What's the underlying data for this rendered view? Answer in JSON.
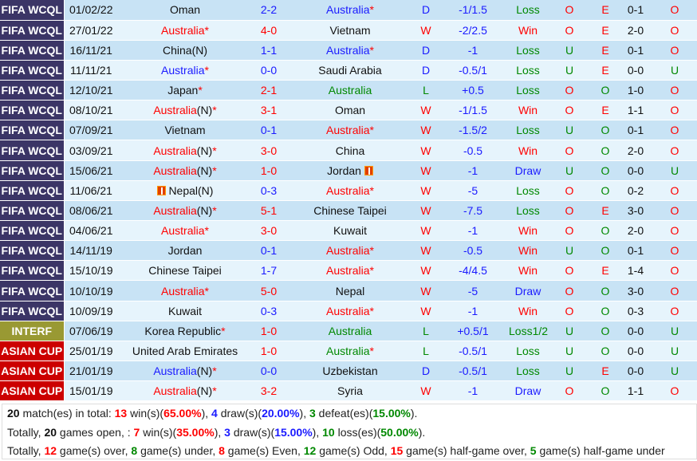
{
  "colors": {
    "FIFA WCQL": "#3b3566",
    "INTERF": "#999933",
    "ASIAN CUP": "#cc0000",
    "win": "#ff0000",
    "draw": "#1a1aff",
    "loss": "#008800"
  },
  "rows": [
    {
      "comp": "FIFA WCQL",
      "date": "01/02/22",
      "home": "Oman",
      "score": "2-2",
      "away": "Australia",
      "away_star": "*",
      "res": "D",
      "hcp": "-1/1.5",
      "out": "Loss",
      "ou": "O",
      "oe": "E",
      "ht": "0-1",
      "htou": "O"
    },
    {
      "comp": "FIFA WCQL",
      "date": "27/01/22",
      "home": "Australia",
      "home_star": "*",
      "score": "4-0",
      "away": "Vietnam",
      "res": "W",
      "hcp": "-2/2.5",
      "out": "Win",
      "ou": "O",
      "oe": "E",
      "ht": "2-0",
      "htou": "O"
    },
    {
      "comp": "FIFA WCQL",
      "date": "16/11/21",
      "home": "China(N)",
      "score": "1-1",
      "away": "Australia",
      "away_star": "*",
      "res": "D",
      "hcp": "-1",
      "out": "Loss",
      "ou": "U",
      "oe": "E",
      "ht": "0-1",
      "htou": "O"
    },
    {
      "comp": "FIFA WCQL",
      "date": "11/11/21",
      "home": "Australia",
      "home_star": "*",
      "score": "0-0",
      "away": "Saudi Arabia",
      "res": "D",
      "hcp": "-0.5/1",
      "out": "Loss",
      "ou": "U",
      "oe": "E",
      "ht": "0-0",
      "htou": "U"
    },
    {
      "comp": "FIFA WCQL",
      "date": "12/10/21",
      "home": "Japan",
      "home_star": "*",
      "score": "2-1",
      "away": "Australia",
      "res": "L",
      "hcp": "+0.5",
      "out": "Loss",
      "ou": "O",
      "oe": "O",
      "ht": "1-0",
      "htou": "O"
    },
    {
      "comp": "FIFA WCQL",
      "date": "08/10/21",
      "home": "Australia",
      "home_n": "(N)",
      "home_star": "*",
      "score": "3-1",
      "away": "Oman",
      "res": "W",
      "hcp": "-1/1.5",
      "out": "Win",
      "ou": "O",
      "oe": "E",
      "ht": "1-1",
      "htou": "O"
    },
    {
      "comp": "FIFA WCQL",
      "date": "07/09/21",
      "home": "Vietnam",
      "score": "0-1",
      "away": "Australia",
      "away_star": "*",
      "res": "W",
      "hcp": "-1.5/2",
      "out": "Loss",
      "ou": "U",
      "oe": "O",
      "ht": "0-1",
      "htou": "O"
    },
    {
      "comp": "FIFA WCQL",
      "date": "03/09/21",
      "home": "Australia",
      "home_n": "(N)",
      "home_star": "*",
      "score": "3-0",
      "away": "China",
      "res": "W",
      "hcp": "-0.5",
      "out": "Win",
      "ou": "O",
      "oe": "O",
      "ht": "2-0",
      "htou": "O"
    },
    {
      "comp": "FIFA WCQL",
      "date": "15/06/21",
      "home": "Australia",
      "home_n": "(N)",
      "home_star": "*",
      "score": "1-0",
      "away": "Jordan",
      "away_flag": "red-card-icon",
      "res": "W",
      "hcp": "-1",
      "out": "Draw",
      "ou": "U",
      "oe": "O",
      "ht": "0-0",
      "htou": "U"
    },
    {
      "comp": "FIFA WCQL",
      "date": "11/06/21",
      "home": "Nepal(N)",
      "home_flag": "red-card-icon",
      "score": "0-3",
      "away": "Australia",
      "away_star": "*",
      "res": "W",
      "hcp": "-5",
      "out": "Loss",
      "ou": "O",
      "oe": "O",
      "ht": "0-2",
      "htou": "O"
    },
    {
      "comp": "FIFA WCQL",
      "date": "08/06/21",
      "home": "Australia",
      "home_n": "(N)",
      "home_star": "*",
      "score": "5-1",
      "away": "Chinese Taipei",
      "res": "W",
      "hcp": "-7.5",
      "out": "Loss",
      "ou": "O",
      "oe": "E",
      "ht": "3-0",
      "htou": "O"
    },
    {
      "comp": "FIFA WCQL",
      "date": "04/06/21",
      "home": "Australia",
      "home_star": "*",
      "score": "3-0",
      "away": "Kuwait",
      "res": "W",
      "hcp": "-1",
      "out": "Win",
      "ou": "O",
      "oe": "O",
      "ht": "2-0",
      "htou": "O"
    },
    {
      "comp": "FIFA WCQL",
      "date": "14/11/19",
      "home": "Jordan",
      "score": "0-1",
      "away": "Australia",
      "away_star": "*",
      "res": "W",
      "hcp": "-0.5",
      "out": "Win",
      "ou": "U",
      "oe": "O",
      "ht": "0-1",
      "htou": "O"
    },
    {
      "comp": "FIFA WCQL",
      "date": "15/10/19",
      "home": "Chinese Taipei",
      "score": "1-7",
      "away": "Australia",
      "away_star": "*",
      "res": "W",
      "hcp": "-4/4.5",
      "out": "Win",
      "ou": "O",
      "oe": "E",
      "ht": "1-4",
      "htou": "O"
    },
    {
      "comp": "FIFA WCQL",
      "date": "10/10/19",
      "home": "Australia",
      "home_star": "*",
      "score": "5-0",
      "away": "Nepal",
      "res": "W",
      "hcp": "-5",
      "out": "Draw",
      "ou": "O",
      "oe": "O",
      "ht": "3-0",
      "htou": "O"
    },
    {
      "comp": "FIFA WCQL",
      "date": "10/09/19",
      "home": "Kuwait",
      "score": "0-3",
      "away": "Australia",
      "away_star": "*",
      "res": "W",
      "hcp": "-1",
      "out": "Win",
      "ou": "O",
      "oe": "O",
      "ht": "0-3",
      "htou": "O"
    },
    {
      "comp": "INTERF",
      "date": "07/06/19",
      "home": "Korea Republic",
      "home_star": "*",
      "score": "1-0",
      "away": "Australia",
      "res": "L",
      "hcp": "+0.5/1",
      "out": "Loss1/2",
      "ou": "U",
      "oe": "O",
      "ht": "0-0",
      "htou": "U"
    },
    {
      "comp": "ASIAN CUP",
      "date": "25/01/19",
      "home": "United Arab Emirates",
      "score": "1-0",
      "away": "Australia",
      "away_star": "*",
      "res": "L",
      "hcp": "-0.5/1",
      "out": "Loss",
      "ou": "U",
      "oe": "O",
      "ht": "0-0",
      "htou": "U"
    },
    {
      "comp": "ASIAN CUP",
      "date": "21/01/19",
      "home": "Australia",
      "home_n": "(N)",
      "home_star": "*",
      "score": "0-0",
      "away": "Uzbekistan",
      "res": "D",
      "hcp": "-0.5/1",
      "out": "Loss",
      "ou": "U",
      "oe": "E",
      "ht": "0-0",
      "htou": "U"
    },
    {
      "comp": "ASIAN CUP",
      "date": "15/01/19",
      "home": "Australia",
      "home_n": "(N)",
      "home_star": "*",
      "score": "3-2",
      "away": "Syria",
      "res": "W",
      "hcp": "-1",
      "out": "Draw",
      "ou": "O",
      "oe": "O",
      "ht": "1-1",
      "htou": "O"
    }
  ],
  "summary": {
    "line1": [
      [
        "20",
        "black"
      ],
      " match(es) in total: ",
      [
        "13",
        "red"
      ],
      " win(s)(",
      [
        "65.00%",
        "red"
      ],
      "), ",
      [
        "4",
        "blue"
      ],
      " draw(s)(",
      [
        "20.00%",
        "blue"
      ],
      "), ",
      [
        "3",
        "green"
      ],
      " defeat(es)(",
      [
        "15.00%",
        "green"
      ],
      ")."
    ],
    "line2": [
      "Totally, ",
      [
        "20",
        "black"
      ],
      " games open, : ",
      [
        "7",
        "red"
      ],
      " win(s)(",
      [
        "35.00%",
        "red"
      ],
      "), ",
      [
        "3",
        "blue"
      ],
      " draw(s)(",
      [
        "15.00%",
        "blue"
      ],
      "), ",
      [
        "10",
        "green"
      ],
      " loss(es)(",
      [
        "50.00%",
        "green"
      ],
      ")."
    ],
    "line3": [
      "Totally, ",
      [
        "12",
        "red"
      ],
      " game(s) over, ",
      [
        "8",
        "green"
      ],
      " game(s) under, ",
      [
        "8",
        "red"
      ],
      " game(s) Even, ",
      [
        "12",
        "green"
      ],
      " game(s) Odd, ",
      [
        "15",
        "red"
      ],
      " game(s) half-game over, ",
      [
        "5",
        "green"
      ],
      " game(s) half-game under"
    ]
  }
}
